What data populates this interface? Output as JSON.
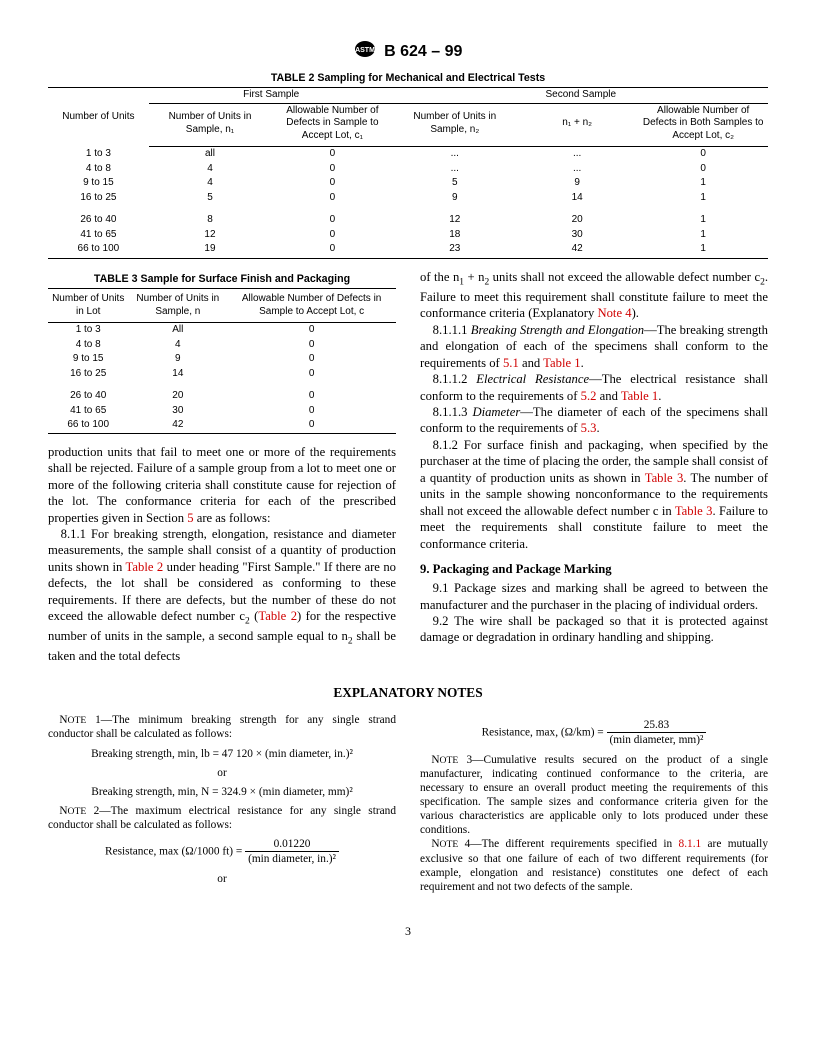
{
  "header": {
    "designation": "B 624 – 99"
  },
  "table2": {
    "title": "TABLE 2  Sampling for Mechanical and Electrical Tests",
    "group1": "First Sample",
    "group2": "Second Sample",
    "cols": {
      "c1": "Number of Units",
      "c2": "Number of Units in Sample, n₁",
      "c3": "Allowable Number of Defects in Sample to Accept Lot, c₁",
      "c4": "Number of Units in Sample, n₂",
      "c5": "n₁ + n₂",
      "c6": "Allowable Number of Defects in Both Samples to Accept Lot, c₂"
    },
    "rows": [
      [
        "1 to 3",
        "all",
        "0",
        "...",
        "...",
        "0"
      ],
      [
        "4 to 8",
        "4",
        "0",
        "...",
        "...",
        "0"
      ],
      [
        "9 to 15",
        "4",
        "0",
        "5",
        "9",
        "1"
      ],
      [
        "16 to 25",
        "5",
        "0",
        "9",
        "14",
        "1"
      ],
      [
        "",
        "",
        "",
        "",
        "",
        ""
      ],
      [
        "26 to 40",
        "8",
        "0",
        "12",
        "20",
        "1"
      ],
      [
        "41 to 65",
        "12",
        "0",
        "18",
        "30",
        "1"
      ],
      [
        "66 to 100",
        "19",
        "0",
        "23",
        "42",
        "1"
      ]
    ]
  },
  "table3": {
    "title": "TABLE 3  Sample for Surface Finish and Packaging",
    "cols": {
      "c1": "Number of Units in Lot",
      "c2": "Number of Units in Sample, n",
      "c3": "Allowable Number of Defects in Sample to Accept Lot, c"
    },
    "rows": [
      [
        "1 to 3",
        "All",
        "0"
      ],
      [
        "4 to 8",
        "4",
        "0"
      ],
      [
        "9 to 15",
        "9",
        "0"
      ],
      [
        "16 to 25",
        "14",
        "0"
      ],
      [
        "",
        "",
        ""
      ],
      [
        "26 to 40",
        "20",
        "0"
      ],
      [
        "41 to 65",
        "30",
        "0"
      ],
      [
        "66 to 100",
        "42",
        "0"
      ]
    ]
  },
  "leftcol": {
    "p1a": "production units that fail to meet one or more of the requirements shall be rejected. Failure of a sample group from a lot to meet one or more of the following criteria shall constitute cause for rejection of the lot. The conformance criteria for each of the prescribed properties given in Section ",
    "p1_ref": "5",
    "p1b": " are as follows:",
    "p2a": "8.1.1 For breaking strength, elongation, resistance and diameter measurements, the sample shall consist of a quantity of production units shown in ",
    "p2_ref1": "Table 2",
    "p2b": " under heading \"First Sample.\" If there are no defects, the lot shall be considered as conforming to these requirements. If there are defects, but the number of these do not exceed the allowable defect number c",
    "p2c": " (",
    "p2_ref2": "Table 2",
    "p2d": ") for the respective number of units in the sample, a second sample equal to n",
    "p2e": " shall be taken and the total defects"
  },
  "rightcol": {
    "p1a": "of the n",
    "p1b": " + n",
    "p1c": " units shall not exceed the allowable defect number c",
    "p1d": ". Failure to meet this requirement shall constitute failure to meet the conformance criteria (Explanatory ",
    "p1_ref": "Note 4",
    "p1e": ").",
    "p2num": "8.1.1.1 ",
    "p2title": "Breaking Strength and Elongation",
    "p2a": "—The breaking strength and elongation of each of the specimens shall conform to the requirements of ",
    "p2_ref1": "5.1",
    "p2b": " and ",
    "p2_ref2": "Table 1",
    "p2c": ".",
    "p3num": "8.1.1.2 ",
    "p3title": "Electrical Resistance",
    "p3a": "—The electrical resistance shall conform to the requirements of ",
    "p3_ref1": "5.2",
    "p3b": " and ",
    "p3_ref2": "Table 1",
    "p3c": ".",
    "p4num": "8.1.1.3 ",
    "p4title": "Diameter",
    "p4a": "—The diameter of each of the specimens shall conform to the requirements of ",
    "p4_ref": "5.3",
    "p4b": ".",
    "p5a": "8.1.2 For surface finish and packaging, when specified by the purchaser at the time of placing the order, the sample shall consist of a quantity of production units as shown in ",
    "p5_ref1": "Table 3",
    "p5b": ". The number of units in the sample showing nonconformance to the requirements shall not exceed the allowable defect number c in ",
    "p5_ref2": "Table 3",
    "p5c": ". Failure to meet the requirements shall constitute failure to meet the conformance criteria.",
    "sec9": "9. Packaging and Package Marking",
    "p91": "9.1 Package sizes and marking shall be agreed to between the manufacturer and the purchaser in the placing of individual orders.",
    "p92": "9.2 The wire shall be packaged so that it is protected against damage or degradation in ordinary handling and shipping."
  },
  "notes": {
    "title": "EXPLANATORY NOTES",
    "n1": "Note 1—The minimum breaking strength for any single strand conductor shall be calculated as follows:",
    "f1": "Breaking strength, min, lb = 47  120 × (min diameter, in.)²",
    "or": "or",
    "f2": "Breaking strength, min, N = 324.9 × (min diameter, mm)²",
    "n2": "Note 2—The maximum electrical resistance for any single strand conductor shall be calculated as follows:",
    "f3label": "Resistance, max (Ω/1000 ft) = ",
    "f3num": "0.01220",
    "f3den": "(min diameter, in.)²",
    "f4label": "Resistance, max, (Ω/km) = ",
    "f4num": "25.83",
    "f4den": "(min diameter, mm)²",
    "n3": "Note 3—Cumulative results secured on the product of a single manufacturer, indicating continued conformance to the criteria, are necessary to ensure an overall product meeting the requirements of this specification. The sample sizes and conformance criteria given for the various characteristics are applicable only to lots produced under these conditions.",
    "n4a": "Note 4—The different requirements specified in ",
    "n4_ref": "8.1.1",
    "n4b": " are mutually exclusive so that one failure of each of two different requirements (for example, elongation and resistance) constitutes one defect of each requirement and not two defects of the sample."
  },
  "pagenum": "3"
}
